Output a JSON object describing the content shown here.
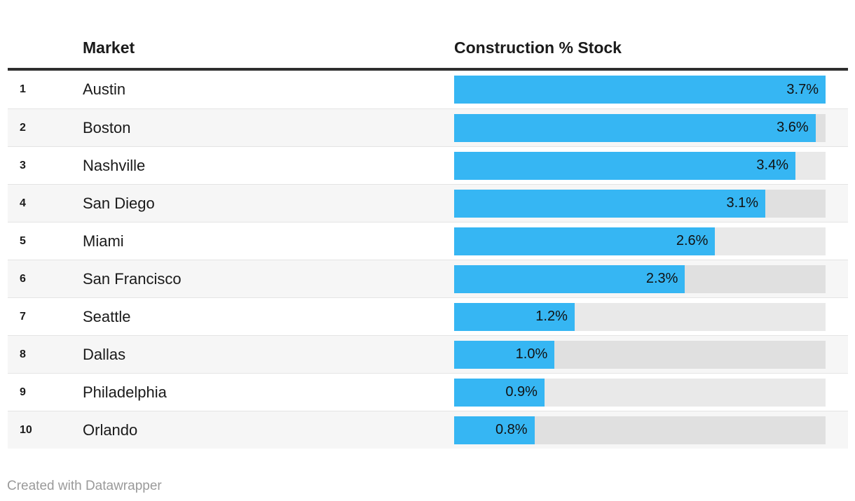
{
  "table": {
    "columns": {
      "rank": "",
      "market": "Market",
      "value": "Construction % Stock"
    },
    "rows": [
      {
        "rank": "1",
        "market": "Austin",
        "value": 3.7,
        "value_label": "3.7%"
      },
      {
        "rank": "2",
        "market": "Boston",
        "value": 3.6,
        "value_label": "3.6%"
      },
      {
        "rank": "3",
        "market": "Nashville",
        "value": 3.4,
        "value_label": "3.4%"
      },
      {
        "rank": "4",
        "market": "San Diego",
        "value": 3.1,
        "value_label": "3.1%"
      },
      {
        "rank": "5",
        "market": "Miami",
        "value": 2.6,
        "value_label": "2.6%"
      },
      {
        "rank": "6",
        "market": "San Francisco",
        "value": 2.3,
        "value_label": "2.3%"
      },
      {
        "rank": "7",
        "market": "Seattle",
        "value": 1.2,
        "value_label": "1.2%"
      },
      {
        "rank": "8",
        "market": "Dallas",
        "value": 1.0,
        "value_label": "1.0%"
      },
      {
        "rank": "9",
        "market": "Philadelphia",
        "value": 0.9,
        "value_label": "0.9%"
      },
      {
        "rank": "10",
        "market": "Orlando",
        "value": 0.8,
        "value_label": "0.8%"
      }
    ]
  },
  "footer": {
    "credit": "Created with Datawrapper"
  },
  "colors": {
    "bar": "#36b6f3",
    "track": "rgba(0,0,0,0.085)",
    "stripe": "#f6f6f6",
    "rule": "#2e2e2e",
    "credit": "#9a9a9a"
  },
  "chart_data": {
    "type": "bar",
    "orientation": "horizontal",
    "title": "",
    "xlabel": "Construction % Stock",
    "ylabel": "Market",
    "categories": [
      "Austin",
      "Boston",
      "Nashville",
      "San Diego",
      "Miami",
      "San Francisco",
      "Seattle",
      "Dallas",
      "Philadelphia",
      "Orlando"
    ],
    "ranks": [
      1,
      2,
      3,
      4,
      5,
      6,
      7,
      8,
      9,
      10
    ],
    "values": [
      3.7,
      3.6,
      3.4,
      3.1,
      2.6,
      2.3,
      1.2,
      1.0,
      0.9,
      0.8
    ],
    "data_labels": [
      "3.7%",
      "3.6%",
      "3.4%",
      "3.1%",
      "2.6%",
      "2.3%",
      "1.2%",
      "1.0%",
      "0.9%",
      "0.8%"
    ],
    "xlim": [
      0,
      3.7
    ],
    "grid": false,
    "legend": false,
    "bar_color": "#36b6f3",
    "row_striping": true,
    "credit": "Created with Datawrapper"
  }
}
